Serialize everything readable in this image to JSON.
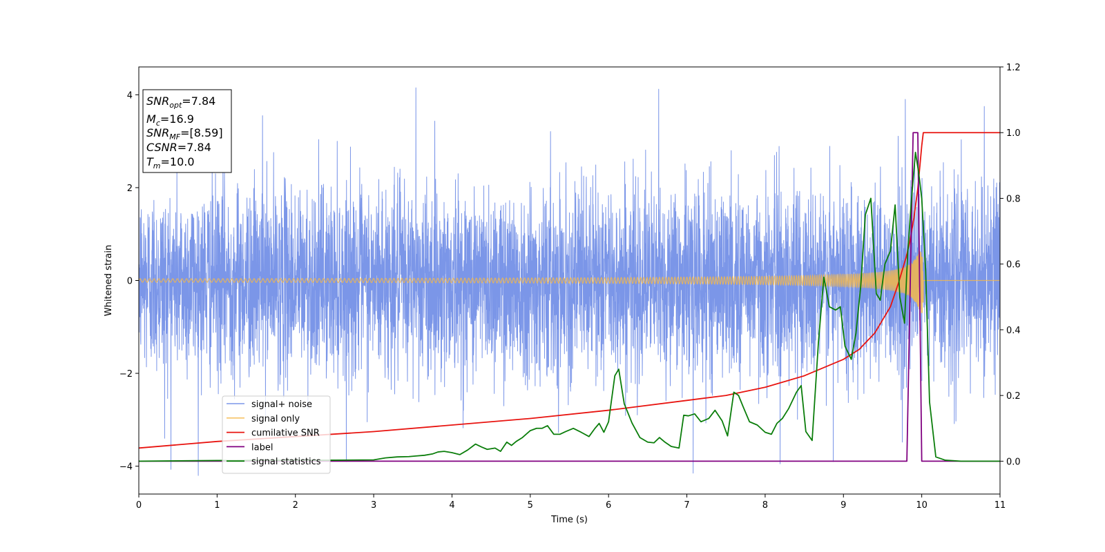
{
  "chart_data": {
    "type": "line",
    "xlabel": "Time (s)",
    "ylabel": "Whitened strain",
    "xlim": [
      0,
      11
    ],
    "ylim": [
      -4.6,
      4.6
    ],
    "y2lim": [
      -0.1,
      1.2
    ],
    "x_ticks": [
      0,
      1,
      2,
      3,
      4,
      5,
      6,
      7,
      8,
      9,
      10,
      11
    ],
    "y_ticks": [
      -4,
      -2,
      0,
      2,
      4
    ],
    "y2_ticks": [
      0.0,
      0.2,
      0.4,
      0.6,
      0.8,
      1.0,
      1.2
    ],
    "grid": false,
    "legend_position": "lower-left",
    "info_box": {
      "position": "top-left",
      "lines": [
        {
          "base": "SNR",
          "sub": "opt",
          "value": "=7.84"
        },
        {
          "base": "M",
          "sub": "c",
          "value": "=16.9"
        },
        {
          "base": "SNR",
          "sub": "MF",
          "value": "=[8.59]"
        },
        {
          "base": "CSNR",
          "sub": "",
          "value": "=7.84"
        },
        {
          "base": "T",
          "sub": "m",
          "value": "=10.0"
        }
      ]
    },
    "series": [
      {
        "name": "signal+ noise",
        "color": "#7b96e8",
        "axis": "left",
        "kind": "noise",
        "noise_sigma": 1.0,
        "range": [
          -4.2,
          4.2
        ],
        "visible_peaks": [
          {
            "x": 3.54,
            "y": 4.15
          },
          {
            "x": 6.64,
            "y": 4.12
          },
          {
            "x": 10.8,
            "y": 3.75
          },
          {
            "x": 1.58,
            "y": 3.55
          },
          {
            "x": 7.08,
            "y": -4.15
          },
          {
            "x": 0.33,
            "y": -3.4
          },
          {
            "x": 8.19,
            "y": -3.95
          },
          {
            "x": 8.87,
            "y": -3.9
          }
        ]
      },
      {
        "name": "signal only",
        "color": "#f5b84a",
        "axis": "left",
        "kind": "chirp",
        "merger_time": 10.0,
        "peak_amplitude": 0.7
      },
      {
        "name": "cumilative SNR",
        "color": "#e8130f",
        "axis": "right",
        "kind": "line",
        "x": [
          0,
          1,
          2,
          3,
          4,
          5,
          6,
          7,
          7.5,
          8,
          8.5,
          9,
          9.2,
          9.4,
          9.6,
          9.7,
          9.8,
          9.85,
          9.9,
          9.95,
          10.0,
          10.02,
          11
        ],
        "y": [
          0.04,
          0.06,
          0.075,
          0.09,
          0.11,
          0.13,
          0.155,
          0.185,
          0.2,
          0.225,
          0.26,
          0.31,
          0.34,
          0.39,
          0.47,
          0.54,
          0.62,
          0.67,
          0.74,
          0.83,
          0.96,
          1.0,
          1.0
        ]
      },
      {
        "name": "label",
        "color": "#800080",
        "axis": "right",
        "kind": "line",
        "x": [
          0,
          9.81,
          9.89,
          9.95,
          10.0,
          11
        ],
        "y": [
          0,
          0,
          1.0,
          1.0,
          0,
          0
        ]
      },
      {
        "name": "signal statistics",
        "color": "#0a7d0a",
        "axis": "right",
        "kind": "line",
        "x": [
          0,
          1,
          2,
          2.5,
          3.0,
          3.15,
          3.3,
          3.45,
          3.55,
          3.65,
          3.75,
          3.82,
          3.9,
          4.0,
          4.1,
          4.2,
          4.3,
          4.38,
          4.45,
          4.55,
          4.62,
          4.7,
          4.76,
          4.82,
          4.9,
          5.0,
          5.08,
          5.15,
          5.22,
          5.3,
          5.38,
          5.45,
          5.55,
          5.65,
          5.75,
          5.82,
          5.88,
          5.94,
          6.0,
          6.08,
          6.13,
          6.2,
          6.3,
          6.4,
          6.5,
          6.58,
          6.65,
          6.72,
          6.8,
          6.9,
          6.96,
          7.02,
          7.1,
          7.18,
          7.28,
          7.36,
          7.45,
          7.52,
          7.6,
          7.66,
          7.72,
          7.8,
          7.9,
          8.0,
          8.08,
          8.15,
          8.22,
          8.3,
          8.4,
          8.46,
          8.52,
          8.6,
          8.68,
          8.75,
          8.82,
          8.9,
          8.96,
          9.02,
          9.1,
          9.16,
          9.22,
          9.28,
          9.35,
          9.42,
          9.47,
          9.53,
          9.6,
          9.66,
          9.72,
          9.78,
          9.82,
          9.87,
          9.92,
          9.96,
          10.0,
          10.05,
          10.1,
          10.18,
          10.3,
          10.5,
          11
        ],
        "y": [
          0,
          0.002,
          0.003,
          0.003,
          0.004,
          0.01,
          0.013,
          0.014,
          0.016,
          0.018,
          0.022,
          0.028,
          0.03,
          0.026,
          0.02,
          0.034,
          0.052,
          0.043,
          0.036,
          0.04,
          0.03,
          0.058,
          0.048,
          0.06,
          0.072,
          0.093,
          0.1,
          0.1,
          0.108,
          0.082,
          0.082,
          0.09,
          0.1,
          0.088,
          0.075,
          0.098,
          0.115,
          0.088,
          0.12,
          0.26,
          0.28,
          0.175,
          0.116,
          0.072,
          0.058,
          0.056,
          0.072,
          0.058,
          0.045,
          0.04,
          0.14,
          0.138,
          0.144,
          0.12,
          0.13,
          0.155,
          0.123,
          0.077,
          0.21,
          0.2,
          0.165,
          0.12,
          0.11,
          0.088,
          0.082,
          0.115,
          0.13,
          0.16,
          0.21,
          0.23,
          0.09,
          0.063,
          0.36,
          0.56,
          0.47,
          0.46,
          0.47,
          0.35,
          0.31,
          0.39,
          0.53,
          0.75,
          0.8,
          0.51,
          0.49,
          0.6,
          0.64,
          0.78,
          0.5,
          0.42,
          0.63,
          0.8,
          0.94,
          0.88,
          0.8,
          0.58,
          0.18,
          0.013,
          0.003,
          0.0,
          0.0
        ]
      }
    ]
  }
}
